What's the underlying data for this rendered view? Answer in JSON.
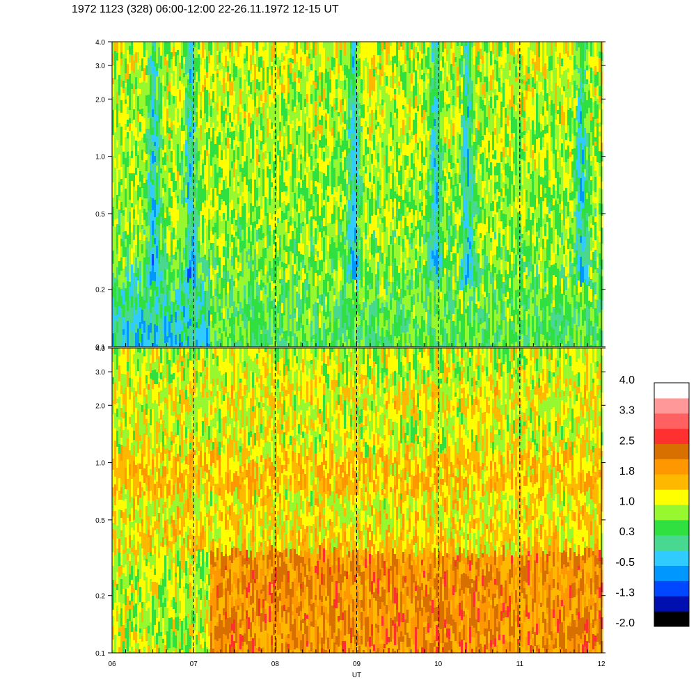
{
  "title": "1972 1123 (328) 06:00-12:00 22-26.11.1972  12-15 UT",
  "colors": {
    "dashed_line": "#000000",
    "background": "#ffffff"
  },
  "chart_data": {
    "type": "heatmap",
    "title": "1972 1123 (328) 06:00-12:00 22-26.11.1972  12-15 UT",
    "xlabel": "UT",
    "x_range": [
      6,
      12
    ],
    "x_ticks": [
      "06",
      "07",
      "08",
      "09",
      "10",
      "11",
      "12"
    ],
    "vertical_dashed_lines_at": [
      7,
      8,
      9,
      10,
      11
    ],
    "panels": [
      {
        "name": "",
        "y_scale": "log",
        "y_range": [
          0.1,
          4.0
        ],
        "y_ticks": [
          "4.0",
          "3.0",
          "2.0",
          "1.0",
          "0.5",
          "0.2",
          "0.1"
        ],
        "dominant_levels": [
          "-1.3",
          "-0.5",
          "0.3",
          "1.0"
        ]
      },
      {
        "name": "",
        "y_scale": "log",
        "y_range": [
          0.1,
          4.0
        ],
        "y_ticks": [
          "4.0",
          "3.0",
          "2.0",
          "1.0",
          "0.5",
          "0.2",
          "0.1"
        ],
        "dominant_levels": [
          "0.3",
          "1.0",
          "1.8",
          "2.5"
        ]
      }
    ],
    "colorbar": {
      "range": [
        -2.0,
        4.0
      ],
      "tick_labels": [
        "4.0",
        "3.3",
        "2.5",
        "1.8",
        "1.0",
        "0.3",
        "-0.5",
        "-1.3",
        "-2.0"
      ],
      "colors": [
        "#000000",
        "#0010b0",
        "#0048ff",
        "#0098ff",
        "#30ccff",
        "#48d890",
        "#30e040",
        "#98f830",
        "#ffff00",
        "#ffb800",
        "#ff9800",
        "#d87000",
        "#ff3030",
        "#ff6060",
        "#ff9898",
        "#ffffff"
      ]
    }
  }
}
